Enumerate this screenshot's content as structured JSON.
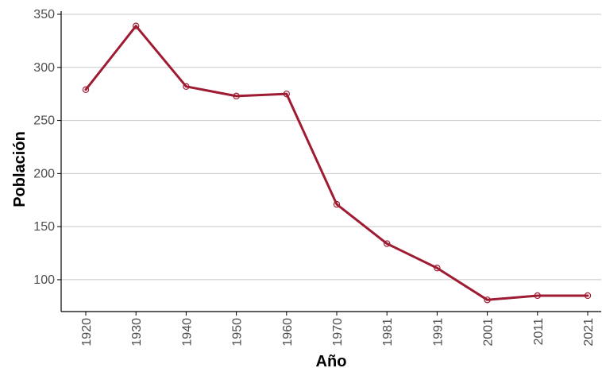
{
  "chart_data": {
    "type": "line",
    "x": [
      "1920",
      "1930",
      "1940",
      "1950",
      "1960",
      "1970",
      "1981",
      "1991",
      "2001",
      "2011",
      "2021"
    ],
    "series": [
      {
        "values": [
          279,
          339,
          282,
          273,
          275,
          171,
          134,
          111,
          81,
          85,
          85
        ]
      }
    ],
    "xlabel": "Año",
    "ylabel": "Población",
    "ylim": [
      70,
      350
    ],
    "yticks": [
      100,
      150,
      200,
      250,
      300,
      350
    ],
    "grid": "horizontal",
    "x_tick_rotation": "vertical",
    "markers": "open-circle",
    "colors": {
      "series": "#9e1b32"
    }
  }
}
